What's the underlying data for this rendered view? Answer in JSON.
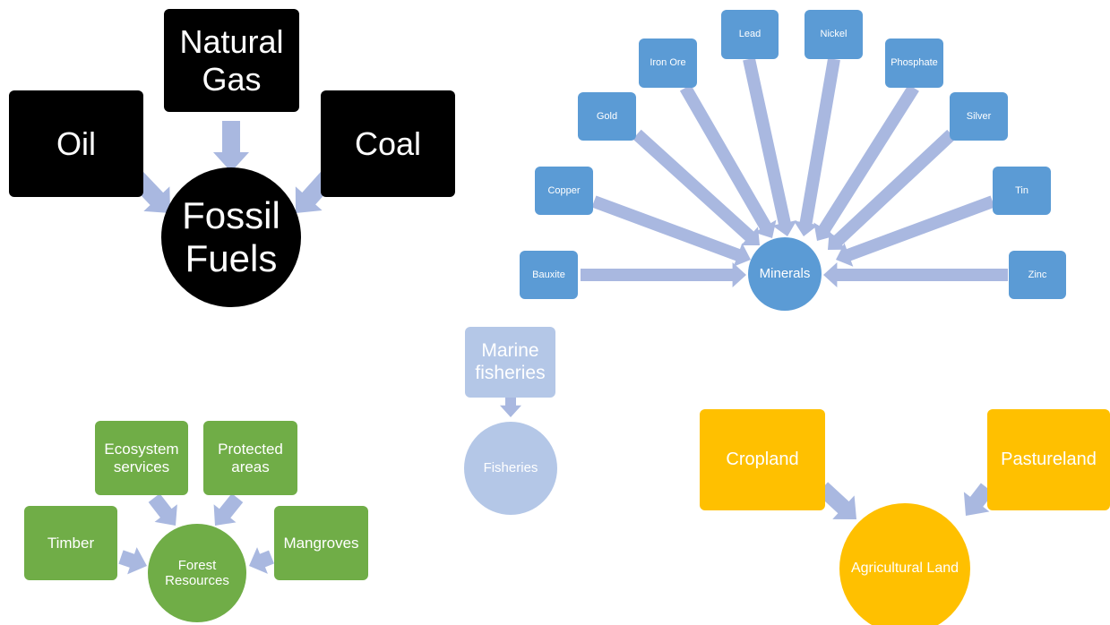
{
  "fossil_fuels": {
    "hub": "Fossil Fuels",
    "sources": [
      "Oil",
      "Natural Gas",
      "Coal"
    ]
  },
  "minerals": {
    "hub": "Minerals",
    "sources": [
      "Bauxite",
      "Copper",
      "Gold",
      "Iron Ore",
      "Lead",
      "Nickel",
      "Phosphate",
      "Silver",
      "Tin",
      "Zinc"
    ]
  },
  "fisheries": {
    "hub": "Fisheries",
    "sources": [
      "Marine fisheries"
    ]
  },
  "forest": {
    "hub": "Forest Resources",
    "sources": [
      "Timber",
      "Ecosystem services",
      "Protected areas",
      "Mangroves"
    ]
  },
  "agricultural_land": {
    "hub": "Agricultural Land",
    "sources": [
      "Cropland",
      "Pastureland"
    ]
  }
}
